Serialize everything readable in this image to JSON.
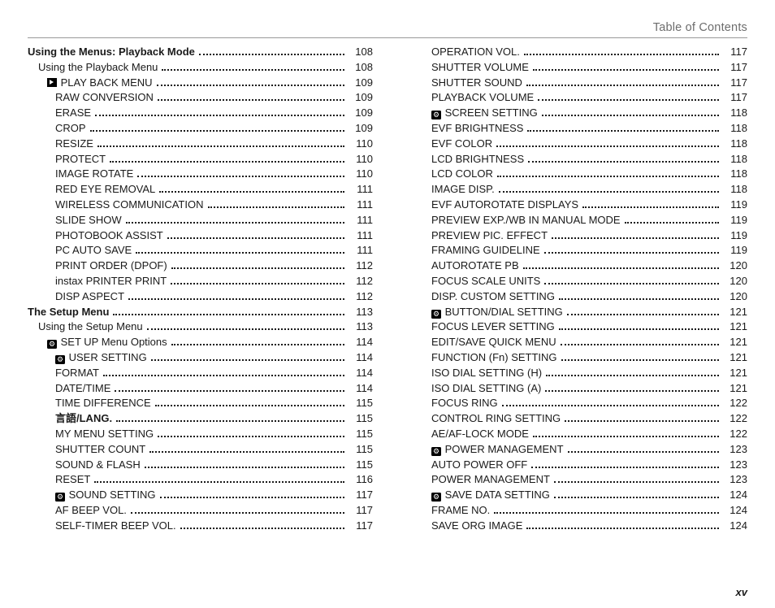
{
  "header": "Table of Contents",
  "footer": "xv",
  "left": [
    {
      "t": "Using the Menus: Playback Mode",
      "p": "108",
      "indent": 0,
      "bold": true
    },
    {
      "t": "Using the Playback Menu",
      "p": "108",
      "indent": 1
    },
    {
      "t": "PLAY BACK MENU",
      "p": "109",
      "indent": 2,
      "symbol": "play",
      "leadSpace": true
    },
    {
      "t": "RAW CONVERSION",
      "p": "109",
      "indent": 3
    },
    {
      "t": "ERASE",
      "p": "109",
      "indent": 3
    },
    {
      "t": "CROP",
      "p": "109",
      "indent": 3
    },
    {
      "t": "RESIZE",
      "p": "110",
      "indent": 3
    },
    {
      "t": "PROTECT",
      "p": "110",
      "indent": 3
    },
    {
      "t": "IMAGE ROTATE",
      "p": "110",
      "indent": 3
    },
    {
      "t": "RED EYE REMOVAL",
      "p": "111",
      "indent": 3
    },
    {
      "t": "WIRELESS COMMUNICATION",
      "p": "111",
      "indent": 3
    },
    {
      "t": "SLIDE SHOW",
      "p": "111",
      "indent": 3
    },
    {
      "t": "PHOTOBOOK ASSIST",
      "p": "111",
      "indent": 3
    },
    {
      "t": "PC AUTO SAVE",
      "p": "111",
      "indent": 3
    },
    {
      "t": "PRINT ORDER (DPOF)",
      "p": "112",
      "indent": 3
    },
    {
      "t": "instax PRINTER PRINT",
      "p": "112",
      "indent": 3
    },
    {
      "t": "DISP ASPECT",
      "p": "112",
      "indent": 3
    },
    {
      "t": "The Setup Menu",
      "p": "113",
      "indent": 0,
      "bold": true
    },
    {
      "t": "Using the Setup Menu",
      "p": "113",
      "indent": 1
    },
    {
      "t": "SET UP Menu Options",
      "p": "114",
      "indent": 2,
      "symbol": "setup"
    },
    {
      "t": "USER SETTING",
      "p": "114",
      "indent": 3,
      "symbol": "setup"
    },
    {
      "t": "FORMAT",
      "p": "114",
      "indent": 3
    },
    {
      "t": "DATE/TIME",
      "p": "114",
      "indent": 3
    },
    {
      "t": "TIME DIFFERENCE",
      "p": "115",
      "indent": 3
    },
    {
      "t": "言語/LANG.",
      "p": "115",
      "indent": 3,
      "bold": true
    },
    {
      "t": "MY MENU SETTING",
      "p": "115",
      "indent": 3
    },
    {
      "t": "SHUTTER COUNT",
      "p": "115",
      "indent": 3
    },
    {
      "t": "SOUND & FLASH",
      "p": "115",
      "indent": 3
    },
    {
      "t": "RESET",
      "p": "116",
      "indent": 3
    },
    {
      "t": "SOUND SETTING",
      "p": "117",
      "indent": 3,
      "symbol": "setup"
    },
    {
      "t": "AF BEEP VOL.",
      "p": "117",
      "indent": 3
    },
    {
      "t": "SELF-TIMER BEEP VOL.",
      "p": "117",
      "indent": 3
    }
  ],
  "right": [
    {
      "t": "OPERATION VOL.",
      "p": "117",
      "indent": 0
    },
    {
      "t": "SHUTTER VOLUME",
      "p": "117",
      "indent": 0
    },
    {
      "t": "SHUTTER SOUND",
      "p": "117",
      "indent": 0
    },
    {
      "t": "PLAYBACK VOLUME",
      "p": "117",
      "indent": 0
    },
    {
      "t": "SCREEN SETTING",
      "p": "118",
      "indent": 0,
      "symbol": "setup"
    },
    {
      "t": "EVF BRIGHTNESS",
      "p": "118",
      "indent": 0
    },
    {
      "t": "EVF COLOR",
      "p": "118",
      "indent": 0
    },
    {
      "t": "LCD BRIGHTNESS",
      "p": "118",
      "indent": 0
    },
    {
      "t": "LCD COLOR",
      "p": "118",
      "indent": 0
    },
    {
      "t": "IMAGE DISP.",
      "p": "118",
      "indent": 0
    },
    {
      "t": "EVF AUTOROTATE DISPLAYS",
      "p": "119",
      "indent": 0
    },
    {
      "t": "PREVIEW EXP./WB IN MANUAL MODE",
      "p": "119",
      "indent": 0
    },
    {
      "t": "PREVIEW PIC. EFFECT",
      "p": "119",
      "indent": 0
    },
    {
      "t": "FRAMING GUIDELINE",
      "p": "119",
      "indent": 0
    },
    {
      "t": "AUTOROTATE PB",
      "p": "120",
      "indent": 0
    },
    {
      "t": "FOCUS SCALE UNITS",
      "p": "120",
      "indent": 0
    },
    {
      "t": "DISP. CUSTOM SETTING",
      "p": "120",
      "indent": 0
    },
    {
      "t": "BUTTON/DIAL SETTING",
      "p": "121",
      "indent": 0,
      "symbol": "setup"
    },
    {
      "t": "FOCUS LEVER SETTING",
      "p": "121",
      "indent": 0
    },
    {
      "t": "EDIT/SAVE QUICK MENU",
      "p": "121",
      "indent": 0
    },
    {
      "t": "FUNCTION (Fn) SETTING",
      "p": "121",
      "indent": 0
    },
    {
      "t": "ISO DIAL SETTING (H)",
      "p": "121",
      "indent": 0
    },
    {
      "t": "ISO DIAL SETTING (A)",
      "p": "121",
      "indent": 0
    },
    {
      "t": "FOCUS RING",
      "p": "122",
      "indent": 0
    },
    {
      "t": "CONTROL RING SETTING",
      "p": "122",
      "indent": 0
    },
    {
      "t": "AE/AF-LOCK MODE",
      "p": "122",
      "indent": 0
    },
    {
      "t": "POWER MANAGEMENT",
      "p": "123",
      "indent": 0,
      "symbol": "setup"
    },
    {
      "t": "AUTO POWER OFF",
      "p": "123",
      "indent": 0
    },
    {
      "t": "POWER MANAGEMENT",
      "p": "123",
      "indent": 0
    },
    {
      "t": "SAVE DATA SETTING",
      "p": "124",
      "indent": 0,
      "symbol": "setup"
    },
    {
      "t": "FRAME NO.",
      "p": "124",
      "indent": 0
    },
    {
      "t": "SAVE ORG IMAGE",
      "p": "124",
      "indent": 0
    }
  ],
  "right_base_indent": 3
}
